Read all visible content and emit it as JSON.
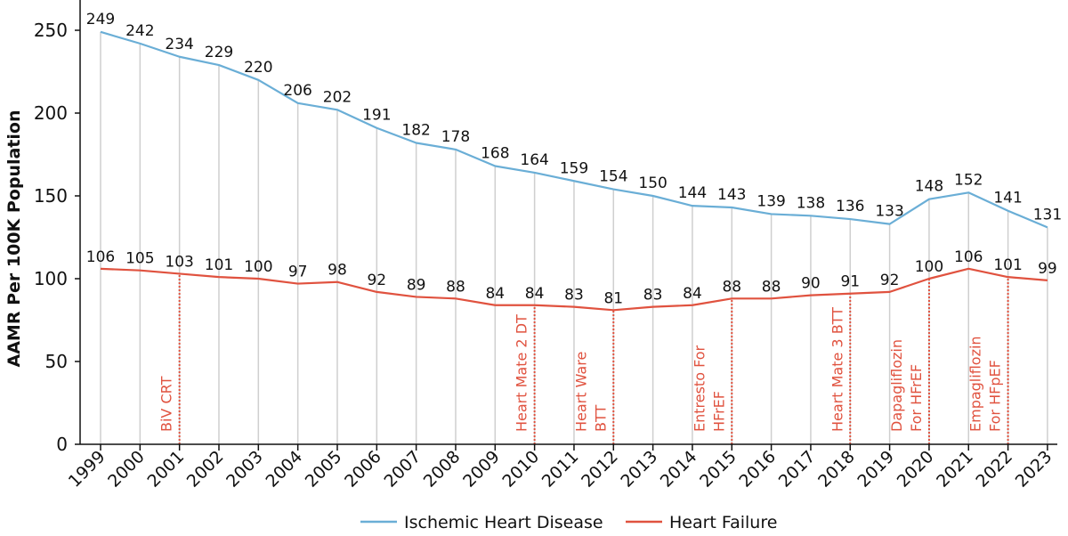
{
  "chart_data": {
    "type": "line",
    "title": "",
    "xlabel": "",
    "ylabel": "AAMR Per 100K Population",
    "ylim": [
      0,
      260
    ],
    "yticks": [
      0,
      50,
      100,
      150,
      200,
      250
    ],
    "x": [
      "1999",
      "2000",
      "2001",
      "2002",
      "2003",
      "2004",
      "2005",
      "2006",
      "2007",
      "2008",
      "2009",
      "2010",
      "2011",
      "2012",
      "2013",
      "2014",
      "2015",
      "2016",
      "2017",
      "2018",
      "2019",
      "2020",
      "2021",
      "2022",
      "2023"
    ],
    "grid": "vertical lines at each year",
    "legend_position": "bottom-center",
    "series": [
      {
        "name": "Ischemic Heart Disease",
        "color": "#6aaed6",
        "values": [
          249,
          242,
          234,
          229,
          220,
          206,
          202,
          191,
          182,
          178,
          168,
          164,
          159,
          154,
          150,
          144,
          143,
          139,
          138,
          136,
          133,
          148,
          152,
          141,
          131
        ]
      },
      {
        "name": "Heart Failure",
        "color": "#e0523f",
        "values": [
          106,
          105,
          103,
          101,
          100,
          97,
          98,
          92,
          89,
          88,
          84,
          84,
          83,
          81,
          83,
          84,
          88,
          88,
          90,
          91,
          92,
          100,
          106,
          101,
          99
        ]
      }
    ],
    "annotations": [
      {
        "year": "2001",
        "lines": [
          "BiV CRT"
        ]
      },
      {
        "year": "2010",
        "lines": [
          "Heart Mate 2 DT"
        ]
      },
      {
        "year": "2012",
        "lines": [
          "Heart Ware",
          "BTT"
        ]
      },
      {
        "year": "2015",
        "lines": [
          "Entresto For",
          "HFrEF"
        ]
      },
      {
        "year": "2018",
        "lines": [
          "Heart Mate 3 BTT"
        ]
      },
      {
        "year": "2020",
        "lines": [
          "Dapagliflozin",
          "For HFrEF"
        ]
      },
      {
        "year": "2022",
        "lines": [
          "Empagliflozin",
          "For HFpEF"
        ]
      }
    ]
  }
}
